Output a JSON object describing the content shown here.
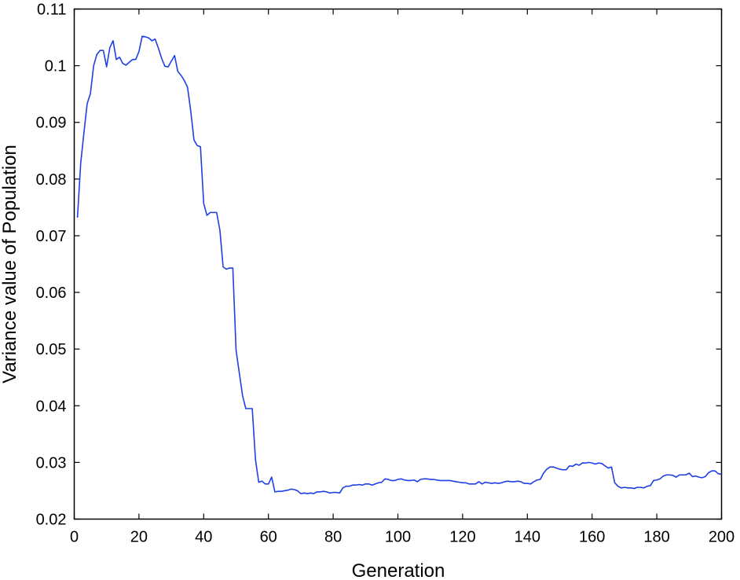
{
  "chart_data": {
    "type": "line",
    "title": "",
    "xlabel": "Generation",
    "ylabel": "Variance value of Population",
    "xlim": [
      0,
      200
    ],
    "ylim": [
      0.02,
      0.11
    ],
    "xticks": [
      0,
      20,
      40,
      60,
      80,
      100,
      120,
      140,
      160,
      180,
      200
    ],
    "yticks": [
      0.02,
      0.03,
      0.04,
      0.05,
      0.06,
      0.07,
      0.08,
      0.09,
      0.1,
      0.11
    ],
    "ytick_labels": [
      "0.02",
      "0.03",
      "0.04",
      "0.05",
      "0.06",
      "0.07",
      "0.08",
      "0.09",
      "0.1",
      "0.11"
    ],
    "grid": false,
    "legend": "none",
    "series": [
      {
        "color": "#1f3fe6",
        "x": [
          1,
          2,
          3,
          4,
          5,
          6,
          7,
          8,
          9,
          10,
          11,
          12,
          13,
          14,
          15,
          16,
          17,
          18,
          19,
          20,
          21,
          22,
          23,
          24,
          25,
          26,
          27,
          28,
          29,
          30,
          31,
          32,
          33,
          34,
          35,
          36,
          37,
          38,
          39,
          40,
          41,
          42,
          43,
          44,
          45,
          46,
          47,
          48,
          49,
          50,
          51,
          52,
          53,
          54,
          55,
          56,
          57,
          58,
          59,
          60,
          61,
          62,
          63,
          64,
          65,
          66,
          67,
          68,
          69,
          70,
          71,
          72,
          73,
          74,
          75,
          76,
          77,
          78,
          79,
          80,
          81,
          82,
          83,
          84,
          85,
          86,
          87,
          88,
          89,
          90,
          91,
          92,
          93,
          94,
          95,
          96,
          97,
          98,
          99,
          100,
          101,
          102,
          103,
          104,
          105,
          106,
          107,
          108,
          109,
          110,
          111,
          112,
          113,
          114,
          115,
          116,
          117,
          118,
          119,
          120,
          121,
          122,
          123,
          124,
          125,
          126,
          127,
          128,
          129,
          130,
          131,
          132,
          133,
          134,
          135,
          136,
          137,
          138,
          139,
          140,
          141,
          142,
          143,
          144,
          145,
          146,
          147,
          148,
          149,
          150,
          151,
          152,
          153,
          154,
          155,
          156,
          157,
          158,
          159,
          160,
          161,
          162,
          163,
          164,
          165,
          166,
          167,
          168,
          169,
          170,
          171,
          172,
          173,
          174,
          175,
          176,
          177,
          178,
          179,
          180,
          181,
          182,
          183,
          184,
          185,
          186,
          187,
          188,
          189,
          190,
          191,
          192,
          193,
          194,
          195,
          196,
          197,
          198,
          199,
          200
        ],
        "y": [
          0.0732,
          0.0828,
          0.0882,
          0.0933,
          0.0951,
          0.1,
          0.102,
          0.1027,
          0.1027,
          0.0998,
          0.1032,
          0.1044,
          0.1011,
          0.1015,
          0.1004,
          0.1001,
          0.1006,
          0.1011,
          0.1011,
          0.1025,
          0.1052,
          0.1051,
          0.1049,
          0.1044,
          0.1047,
          0.1031,
          0.1013,
          0.0999,
          0.0998,
          0.1008,
          0.1018,
          0.099,
          0.0983,
          0.0974,
          0.0962,
          0.092,
          0.0869,
          0.0859,
          0.0857,
          0.0757,
          0.0736,
          0.0741,
          0.0741,
          0.0741,
          0.071,
          0.0645,
          0.0641,
          0.0643,
          0.0643,
          0.0498,
          0.0458,
          0.0418,
          0.0395,
          0.0395,
          0.0395,
          0.0305,
          0.0265,
          0.0267,
          0.0262,
          0.0262,
          0.0274,
          0.0248,
          0.0249,
          0.0249,
          0.025,
          0.0251,
          0.0253,
          0.0252,
          0.025,
          0.0245,
          0.0246,
          0.0245,
          0.0246,
          0.0245,
          0.0248,
          0.0248,
          0.0249,
          0.0248,
          0.0246,
          0.0247,
          0.0247,
          0.0246,
          0.0255,
          0.0258,
          0.0258,
          0.026,
          0.026,
          0.0261,
          0.026,
          0.0262,
          0.0262,
          0.026,
          0.0262,
          0.0264,
          0.0265,
          0.0271,
          0.027,
          0.0268,
          0.0268,
          0.027,
          0.0271,
          0.0269,
          0.0268,
          0.0268,
          0.0269,
          0.0266,
          0.027,
          0.0271,
          0.0271,
          0.027,
          0.027,
          0.0269,
          0.0268,
          0.0268,
          0.0268,
          0.0268,
          0.0267,
          0.0266,
          0.0265,
          0.0264,
          0.0264,
          0.0262,
          0.0262,
          0.0262,
          0.0266,
          0.0262,
          0.0265,
          0.0264,
          0.0263,
          0.0264,
          0.0263,
          0.0264,
          0.0266,
          0.0267,
          0.0266,
          0.0266,
          0.0267,
          0.0266,
          0.0263,
          0.0263,
          0.0262,
          0.0266,
          0.0269,
          0.027,
          0.0281,
          0.0288,
          0.0292,
          0.0292,
          0.029,
          0.0288,
          0.0287,
          0.0287,
          0.0294,
          0.0293,
          0.0297,
          0.0295,
          0.0299,
          0.0299,
          0.03,
          0.0299,
          0.0297,
          0.0299,
          0.0298,
          0.0294,
          0.029,
          0.0292,
          0.0264,
          0.0258,
          0.0255,
          0.0256,
          0.0255,
          0.0255,
          0.0254,
          0.0256,
          0.0256,
          0.0255,
          0.0258,
          0.0259,
          0.0268,
          0.0269,
          0.0271,
          0.0276,
          0.0278,
          0.0278,
          0.0277,
          0.0274,
          0.0278,
          0.0278,
          0.0278,
          0.0281,
          0.0275,
          0.0276,
          0.0274,
          0.0273,
          0.0275,
          0.0282,
          0.0285,
          0.0285,
          0.028,
          0.0279
        ]
      }
    ]
  }
}
